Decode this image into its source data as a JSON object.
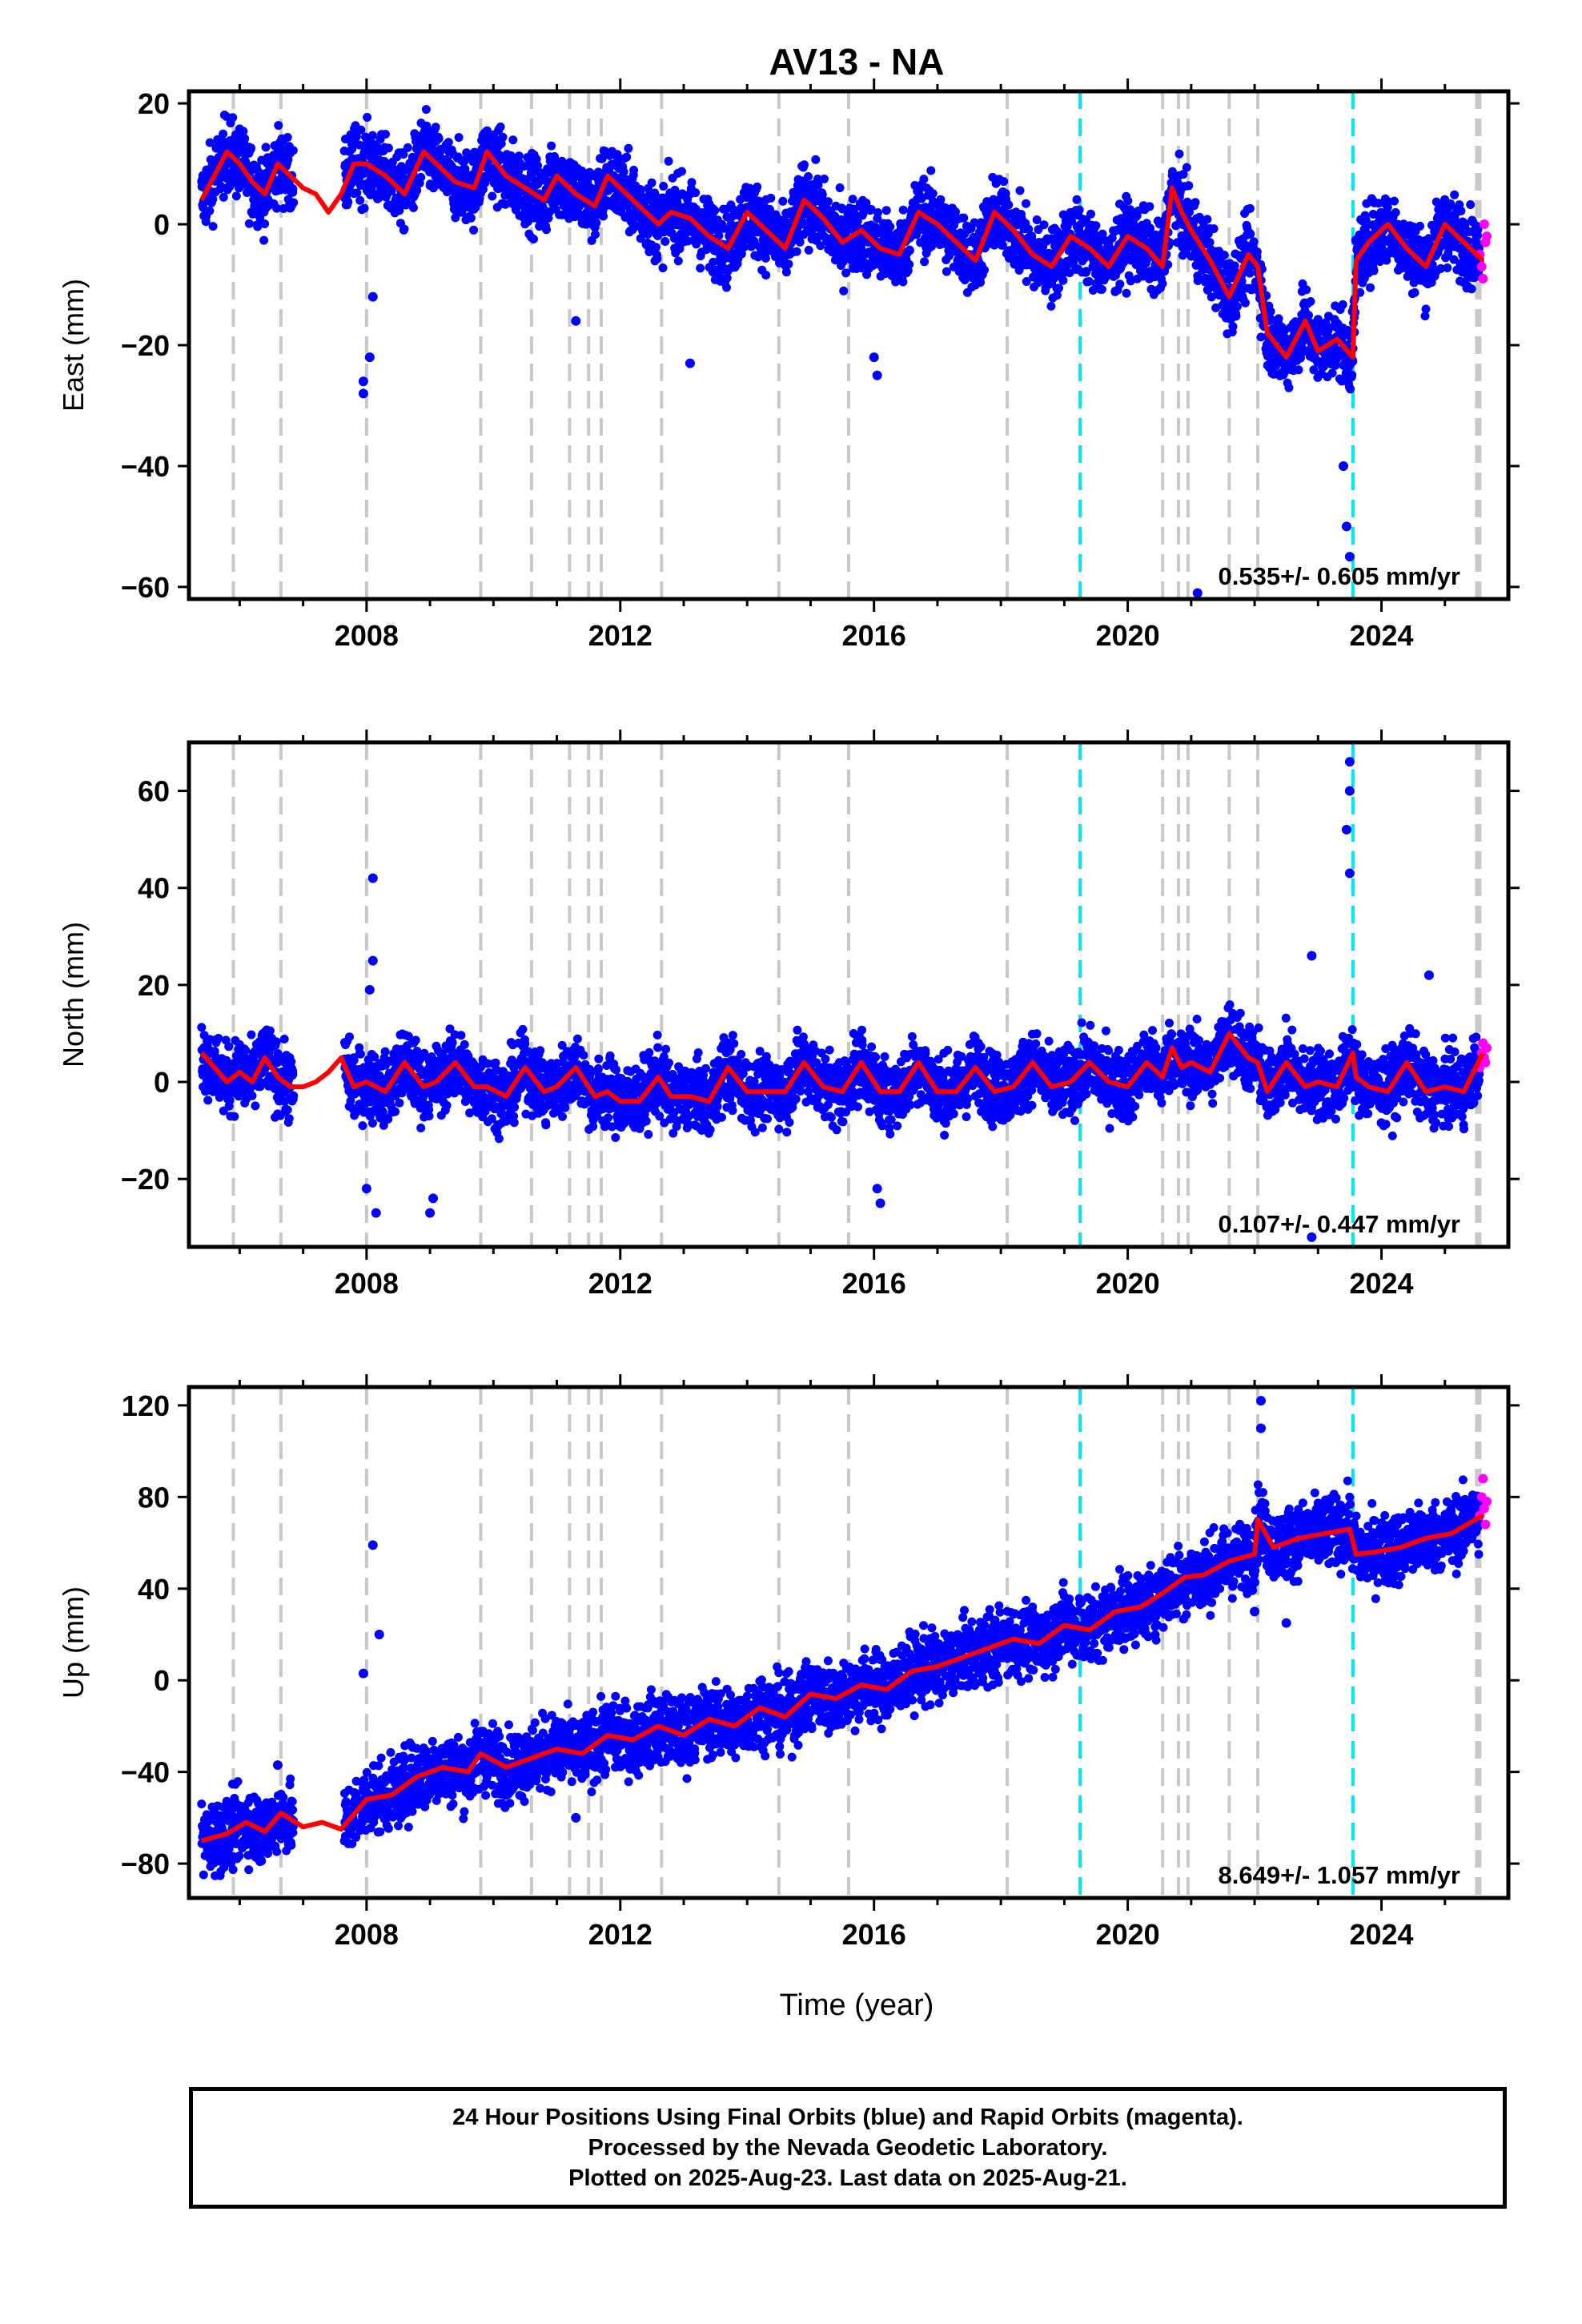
{
  "title": "AV13 - NA",
  "x_axis_label": "Time (year)",
  "colors": {
    "final_orbits": "#0000ff",
    "rapid_orbits": "#ff00ff",
    "model": "#ff0000",
    "step_gray": "#c8c8c8",
    "step_cyan": "#00e5ee"
  },
  "chart_data": [
    {
      "type": "scatter",
      "id": "east",
      "ylabel": "East (mm)",
      "xlim": [
        2005.2,
        2026.0
      ],
      "ylim": [
        -62,
        22
      ],
      "yticks": [
        -60,
        -40,
        -20,
        0,
        20
      ],
      "xticks": [
        2008,
        2012,
        2016,
        2020,
        2024
      ],
      "rate_label": "0.535+/- 0.605 mm/yr",
      "gray_steps": [
        2005.9,
        2006.65,
        2008.0,
        2009.8,
        2010.6,
        2011.2,
        2011.5,
        2011.7,
        2012.65,
        2014.5,
        2015.6,
        2018.1,
        2020.55,
        2020.8,
        2020.95,
        2021.6,
        2022.05,
        2025.5,
        2025.55
      ],
      "cyan_steps": [
        2019.25,
        2023.55
      ],
      "model": {
        "x": [
          2005.4,
          2005.6,
          2005.8,
          2006.0,
          2006.2,
          2006.4,
          2006.6,
          2006.8,
          2007.0,
          2007.2,
          2007.4,
          2007.6,
          2007.8,
          2008.0,
          2008.3,
          2008.6,
          2008.9,
          2009.1,
          2009.4,
          2009.7,
          2009.9,
          2010.2,
          2010.5,
          2010.8,
          2011.0,
          2011.3,
          2011.6,
          2011.8,
          2012.0,
          2012.3,
          2012.6,
          2012.8,
          2013.1,
          2013.4,
          2013.7,
          2014.0,
          2014.3,
          2014.6,
          2014.9,
          2015.2,
          2015.5,
          2015.8,
          2016.1,
          2016.4,
          2016.7,
          2017.0,
          2017.3,
          2017.6,
          2017.9,
          2018.2,
          2018.5,
          2018.8,
          2019.1,
          2019.4,
          2019.7,
          2020.0,
          2020.3,
          2020.55,
          2020.7,
          2020.85,
          2021.0,
          2021.3,
          2021.6,
          2021.9,
          2022.05,
          2022.2,
          2022.5,
          2022.8,
          2023.0,
          2023.3,
          2023.55,
          2023.6,
          2023.8,
          2024.1,
          2024.4,
          2024.7,
          2025.0,
          2025.3,
          2025.6
        ],
        "y": [
          4,
          8,
          12,
          10,
          7,
          5,
          10,
          8,
          6,
          5,
          2,
          5,
          10,
          10,
          8,
          5,
          12,
          10,
          7,
          6,
          12,
          8,
          6,
          4,
          8,
          5,
          3,
          8,
          6,
          3,
          0,
          2,
          1,
          -2,
          -4,
          2,
          -1,
          -4,
          4,
          1,
          -3,
          -1,
          -4,
          -5,
          2,
          0,
          -3,
          -6,
          2,
          -1,
          -5,
          -7,
          -2,
          -4,
          -7,
          -2,
          -4,
          -7,
          6,
          2,
          -1,
          -6,
          -12,
          -5,
          -7,
          -18,
          -22,
          -16,
          -21,
          -19,
          -22,
          -6,
          -3,
          0,
          -4,
          -7,
          0,
          -3,
          -6
        ]
      },
      "outlier_points": [
        [
          2007.95,
          -26
        ],
        [
          2007.95,
          -28
        ],
        [
          2008.05,
          -22
        ],
        [
          2008.1,
          -12
        ],
        [
          2011.3,
          -16
        ],
        [
          2013.1,
          -23
        ],
        [
          2016.0,
          -22
        ],
        [
          2016.05,
          -25
        ],
        [
          2021.1,
          -61
        ],
        [
          2023.5,
          -55
        ],
        [
          2023.45,
          -50
        ],
        [
          2023.4,
          -40
        ]
      ],
      "rapid_points": [
        [
          2025.55,
          -5
        ],
        [
          2025.58,
          -7
        ],
        [
          2025.6,
          -9
        ],
        [
          2025.62,
          0
        ],
        [
          2025.64,
          -3
        ],
        [
          2025.66,
          -2
        ]
      ]
    },
    {
      "type": "scatter",
      "id": "north",
      "ylabel": "North (mm)",
      "xlim": [
        2005.2,
        2026.0
      ],
      "ylim": [
        -34,
        70
      ],
      "yticks": [
        -20,
        0,
        20,
        40,
        60
      ],
      "xticks": [
        2008,
        2012,
        2016,
        2020,
        2024
      ],
      "rate_label": "0.107+/- 0.447 mm/yr",
      "gray_steps": [
        2005.9,
        2006.65,
        2008.0,
        2009.8,
        2010.6,
        2011.2,
        2011.5,
        2011.7,
        2012.65,
        2014.5,
        2015.6,
        2018.1,
        2020.55,
        2020.8,
        2020.95,
        2021.6,
        2022.05,
        2025.5,
        2025.55
      ],
      "cyan_steps": [
        2019.25,
        2023.55
      ],
      "model": {
        "x": [
          2005.4,
          2005.6,
          2005.8,
          2006.0,
          2006.2,
          2006.4,
          2006.6,
          2006.8,
          2007.0,
          2007.2,
          2007.4,
          2007.6,
          2007.8,
          2008.0,
          2008.3,
          2008.6,
          2008.9,
          2009.1,
          2009.4,
          2009.7,
          2009.9,
          2010.2,
          2010.5,
          2010.8,
          2011.0,
          2011.3,
          2011.6,
          2011.8,
          2012.0,
          2012.3,
          2012.6,
          2012.8,
          2013.1,
          2013.4,
          2013.7,
          2014.0,
          2014.3,
          2014.6,
          2014.9,
          2015.2,
          2015.5,
          2015.8,
          2016.1,
          2016.4,
          2016.7,
          2017.0,
          2017.3,
          2017.6,
          2017.9,
          2018.2,
          2018.5,
          2018.8,
          2019.1,
          2019.4,
          2019.7,
          2020.0,
          2020.3,
          2020.55,
          2020.7,
          2020.85,
          2021.0,
          2021.3,
          2021.6,
          2021.9,
          2022.05,
          2022.2,
          2022.5,
          2022.8,
          2023.0,
          2023.3,
          2023.55,
          2023.6,
          2023.8,
          2024.1,
          2024.4,
          2024.7,
          2025.0,
          2025.3,
          2025.6
        ],
        "y": [
          6,
          3,
          0,
          2,
          0,
          5,
          1,
          -1,
          -1,
          0,
          2,
          5,
          -1,
          0,
          -2,
          4,
          -1,
          0,
          4,
          -1,
          -1,
          -3,
          3,
          -2,
          -1,
          3,
          -3,
          -2,
          -4,
          -4,
          1,
          -3,
          -3,
          -4,
          3,
          -2,
          -2,
          -2,
          4,
          -1,
          -2,
          4,
          -2,
          -2,
          4,
          -2,
          -2,
          3,
          -2,
          -1,
          4,
          -1,
          0,
          4,
          0,
          -1,
          4,
          1,
          7,
          3,
          4,
          2,
          10,
          5,
          4,
          -2,
          4,
          -1,
          0,
          -1,
          6,
          1,
          -1,
          -2,
          4,
          -2,
          -1,
          -2,
          6
        ]
      },
      "outlier_points": [
        [
          2008.1,
          42
        ],
        [
          2008.1,
          25
        ],
        [
          2008.05,
          19
        ],
        [
          2008.0,
          -22
        ],
        [
          2008.15,
          -27
        ],
        [
          2009.0,
          -27
        ],
        [
          2009.05,
          -24
        ],
        [
          2016.05,
          -22
        ],
        [
          2016.1,
          -25
        ],
        [
          2022.9,
          -32
        ],
        [
          2023.5,
          66
        ],
        [
          2023.5,
          60
        ],
        [
          2023.45,
          52
        ],
        [
          2023.5,
          43
        ],
        [
          2022.9,
          26
        ],
        [
          2024.75,
          22
        ]
      ],
      "rapid_points": [
        [
          2025.55,
          3
        ],
        [
          2025.58,
          6
        ],
        [
          2025.6,
          8
        ],
        [
          2025.62,
          5
        ],
        [
          2025.64,
          4
        ],
        [
          2025.66,
          7
        ]
      ]
    },
    {
      "type": "scatter",
      "id": "up",
      "ylabel": "Up (mm)",
      "xlim": [
        2005.2,
        2026.0
      ],
      "ylim": [
        -95,
        128
      ],
      "yticks": [
        -80,
        -40,
        0,
        40,
        80,
        120
      ],
      "xticks": [
        2008,
        2012,
        2016,
        2020,
        2024
      ],
      "rate_label": "8.649+/- 1.057 mm/yr",
      "gray_steps": [
        2005.9,
        2006.65,
        2008.0,
        2009.8,
        2010.6,
        2011.2,
        2011.5,
        2011.7,
        2012.65,
        2014.5,
        2015.6,
        2018.1,
        2020.55,
        2020.8,
        2020.95,
        2021.6,
        2022.05,
        2025.5,
        2025.55
      ],
      "cyan_steps": [
        2019.25,
        2023.55
      ],
      "model": {
        "x": [
          2005.4,
          2005.8,
          2006.1,
          2006.4,
          2006.65,
          2007.0,
          2007.3,
          2007.6,
          2008.0,
          2008.4,
          2008.8,
          2009.2,
          2009.6,
          2009.8,
          2010.2,
          2010.6,
          2011.0,
          2011.4,
          2011.8,
          2012.2,
          2012.6,
          2013.0,
          2013.4,
          2013.8,
          2014.2,
          2014.6,
          2015.0,
          2015.4,
          2015.8,
          2016.2,
          2016.6,
          2017.0,
          2017.4,
          2017.8,
          2018.2,
          2018.6,
          2019.0,
          2019.4,
          2019.8,
          2020.2,
          2020.55,
          2020.9,
          2021.2,
          2021.6,
          2022.0,
          2022.05,
          2022.3,
          2022.7,
          2023.1,
          2023.5,
          2023.6,
          2023.9,
          2024.3,
          2024.7,
          2025.1,
          2025.6
        ],
        "y": [
          -70,
          -67,
          -62,
          -66,
          -58,
          -64,
          -62,
          -65,
          -52,
          -50,
          -42,
          -38,
          -40,
          -32,
          -38,
          -34,
          -30,
          -32,
          -24,
          -26,
          -20,
          -24,
          -17,
          -20,
          -12,
          -16,
          -6,
          -8,
          -2,
          -4,
          4,
          6,
          10,
          14,
          18,
          16,
          24,
          22,
          30,
          32,
          38,
          45,
          46,
          52,
          55,
          70,
          58,
          62,
          64,
          66,
          55,
          56,
          58,
          62,
          64,
          72
        ]
      },
      "outlier_points": [
        [
          2007.95,
          3
        ],
        [
          2008.1,
          59
        ],
        [
          2008.2,
          20
        ],
        [
          2011.3,
          -60
        ],
        [
          2022.1,
          122
        ],
        [
          2022.1,
          110
        ],
        [
          2022.5,
          25
        ],
        [
          2022.0,
          30
        ],
        [
          2006.6,
          -37
        ]
      ],
      "rapid_points": [
        [
          2025.55,
          72
        ],
        [
          2025.58,
          80
        ],
        [
          2025.6,
          88
        ],
        [
          2025.62,
          75
        ],
        [
          2025.64,
          68
        ],
        [
          2025.66,
          78
        ]
      ]
    }
  ],
  "footer": {
    "line1": "24 Hour Positions Using Final Orbits (blue) and Rapid Orbits (magenta).",
    "line2": "Processed by the Nevada Geodetic Laboratory.",
    "line3": "Plotted on 2025-Aug-23. Last data on 2025-Aug-21."
  }
}
